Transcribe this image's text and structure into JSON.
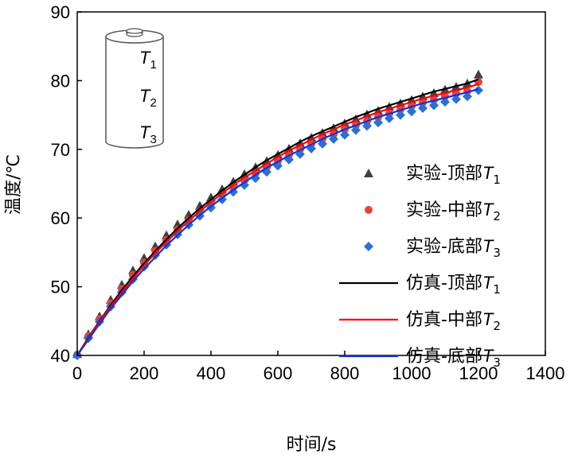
{
  "chart_data": {
    "type": "line",
    "title": "",
    "xlabel": "时间/s",
    "ylabel": "温度/℃",
    "xlim": [
      0,
      1400
    ],
    "ylim": [
      40,
      90
    ],
    "xticks": [
      0,
      200,
      400,
      600,
      800,
      1000,
      1200,
      1400
    ],
    "yticks": [
      40,
      50,
      60,
      70,
      80,
      90
    ],
    "x_tick_labels": [
      "0",
      "200",
      "400",
      "600",
      "800",
      "1000",
      "1200",
      "1400"
    ],
    "y_tick_labels": [
      "40",
      "50",
      "60",
      "70",
      "80",
      "90"
    ],
    "legend_position": "right",
    "x": [
      0,
      33.3,
      66.7,
      100,
      133.3,
      166.7,
      200,
      233.3,
      266.7,
      300,
      333.3,
      366.7,
      400,
      433.3,
      466.7,
      500,
      533.3,
      566.7,
      600,
      633.3,
      666.7,
      700,
      733.3,
      766.7,
      800,
      833.3,
      866.7,
      900,
      933.3,
      966.7,
      1000,
      1033.3,
      1066.7,
      1100,
      1133.3,
      1166.7,
      1200
    ],
    "series": [
      {
        "name": "实验-顶部",
        "subscript": "1",
        "kind": "marker",
        "marker": "triangle",
        "color": "#404040",
        "values": [
          40.2,
          43.1,
          45.7,
          48.1,
          50.3,
          52.4,
          54.2,
          55.9,
          57.5,
          59.1,
          60.5,
          61.8,
          63.0,
          64.2,
          65.3,
          66.4,
          67.4,
          68.3,
          69.2,
          70.1,
          70.9,
          71.7,
          72.4,
          73.1,
          73.8,
          74.4,
          75.1,
          75.6,
          76.2,
          76.7,
          77.2,
          77.7,
          78.2,
          78.7,
          79.1,
          79.6,
          80.9
        ]
      },
      {
        "name": "实验-中部",
        "subscript": "2",
        "kind": "marker",
        "marker": "circle",
        "color": "#e84040",
        "values": [
          40.1,
          42.8,
          45.3,
          47.6,
          49.7,
          51.7,
          53.5,
          55.2,
          56.8,
          58.3,
          59.7,
          61.0,
          62.2,
          63.4,
          64.5,
          65.5,
          66.5,
          67.4,
          68.3,
          69.2,
          70.0,
          70.8,
          71.5,
          72.2,
          72.9,
          73.5,
          74.1,
          74.7,
          75.2,
          75.8,
          76.3,
          76.8,
          77.2,
          77.7,
          78.1,
          78.5,
          79.8
        ]
      },
      {
        "name": "实验-底部",
        "subscript": "3",
        "kind": "marker",
        "marker": "diamond",
        "color": "#2a6fd6",
        "values": [
          40.0,
          42.5,
          44.9,
          47.1,
          49.2,
          51.1,
          52.9,
          54.6,
          56.1,
          57.6,
          59.0,
          60.3,
          61.5,
          62.7,
          63.8,
          64.8,
          65.8,
          66.7,
          67.6,
          68.5,
          69.3,
          70.1,
          70.8,
          71.5,
          72.1,
          72.8,
          73.4,
          73.9,
          74.5,
          75.0,
          75.5,
          76.0,
          76.4,
          76.9,
          77.3,
          77.7,
          78.6
        ]
      },
      {
        "name": "仿真-顶部",
        "subscript": "1",
        "kind": "line",
        "color": "#000000",
        "values": [
          40.0,
          42.6,
          45.0,
          47.3,
          49.5,
          51.5,
          53.4,
          55.2,
          56.9,
          58.5,
          60.0,
          61.4,
          62.7,
          64.0,
          65.2,
          66.3,
          67.4,
          68.4,
          69.3,
          70.2,
          71.1,
          71.9,
          72.6,
          73.3,
          74.0,
          74.7,
          75.3,
          75.9,
          76.4,
          76.9,
          77.4,
          77.9,
          78.4,
          78.8,
          79.2,
          79.6,
          80.2
        ]
      },
      {
        "name": "仿真-中部",
        "subscript": "2",
        "kind": "line",
        "color": "#ff0000",
        "values": [
          40.0,
          42.5,
          44.9,
          47.1,
          49.2,
          51.2,
          53.1,
          54.9,
          56.5,
          58.1,
          59.6,
          61.0,
          62.3,
          63.6,
          64.8,
          65.9,
          66.9,
          67.9,
          68.9,
          69.8,
          70.6,
          71.4,
          72.2,
          72.9,
          73.6,
          74.2,
          74.8,
          75.4,
          75.9,
          76.4,
          76.9,
          77.4,
          77.8,
          78.2,
          78.6,
          79.0,
          79.5
        ]
      },
      {
        "name": "仿真-底部",
        "subscript": "3",
        "kind": "line",
        "color": "#1a2fd0",
        "values": [
          40.0,
          42.3,
          44.6,
          46.8,
          48.8,
          50.8,
          52.6,
          54.3,
          56.0,
          57.5,
          59.0,
          60.4,
          61.7,
          62.9,
          64.1,
          65.2,
          66.3,
          67.3,
          68.2,
          69.1,
          69.9,
          70.7,
          71.5,
          72.2,
          72.9,
          73.5,
          74.1,
          74.7,
          75.2,
          75.7,
          76.2,
          76.7,
          77.1,
          77.5,
          77.9,
          78.3,
          78.8
        ]
      }
    ],
    "legend_prefix": "T",
    "inset": {
      "labels": [
        "T",
        "T",
        "T"
      ],
      "subscripts": [
        "1",
        "2",
        "3"
      ]
    }
  }
}
